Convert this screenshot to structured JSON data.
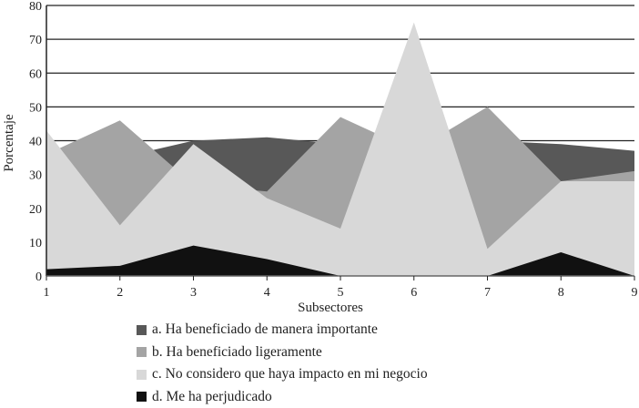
{
  "chart_data": {
    "type": "area",
    "stacked": false,
    "title": "",
    "xlabel": "Subsectores",
    "ylabel": "Porcentaje",
    "x": [
      1,
      2,
      3,
      4,
      5,
      6,
      7,
      8,
      9
    ],
    "yticks": [
      0,
      10,
      20,
      30,
      40,
      50,
      60,
      70,
      80
    ],
    "ylim": [
      0,
      80
    ],
    "grid": "horizontal",
    "legend_position": "bottom",
    "series": [
      {
        "name": "a. Ha beneficiado de manera importante",
        "color": "#585858",
        "values": [
          35,
          35,
          40,
          41,
          39,
          39,
          40,
          39,
          37
        ]
      },
      {
        "name": "b. Ha beneficiado ligeramente",
        "color": "#a4a4a4",
        "values": [
          36,
          46,
          27,
          25,
          47,
          37,
          50,
          28,
          31
        ]
      },
      {
        "name": "c. No considero que haya impacto en mi negocio",
        "color": "#d8d8d8",
        "values": [
          43,
          15,
          39,
          23,
          14,
          75,
          8,
          28,
          28
        ]
      },
      {
        "name": "d. Me ha perjudicado",
        "color": "#111111",
        "values": [
          2,
          3,
          9,
          5,
          0,
          0,
          0,
          7,
          0
        ]
      }
    ]
  },
  "legend": {
    "items": [
      {
        "label": "a. Ha beneficiado de manera importante",
        "color": "#585858"
      },
      {
        "label": "b. Ha beneficiado ligeramente",
        "color": "#a4a4a4"
      },
      {
        "label": "c. No considero que haya impacto en mi negocio",
        "color": "#d8d8d8"
      },
      {
        "label": "d. Me ha perjudicado",
        "color": "#111111"
      }
    ]
  }
}
